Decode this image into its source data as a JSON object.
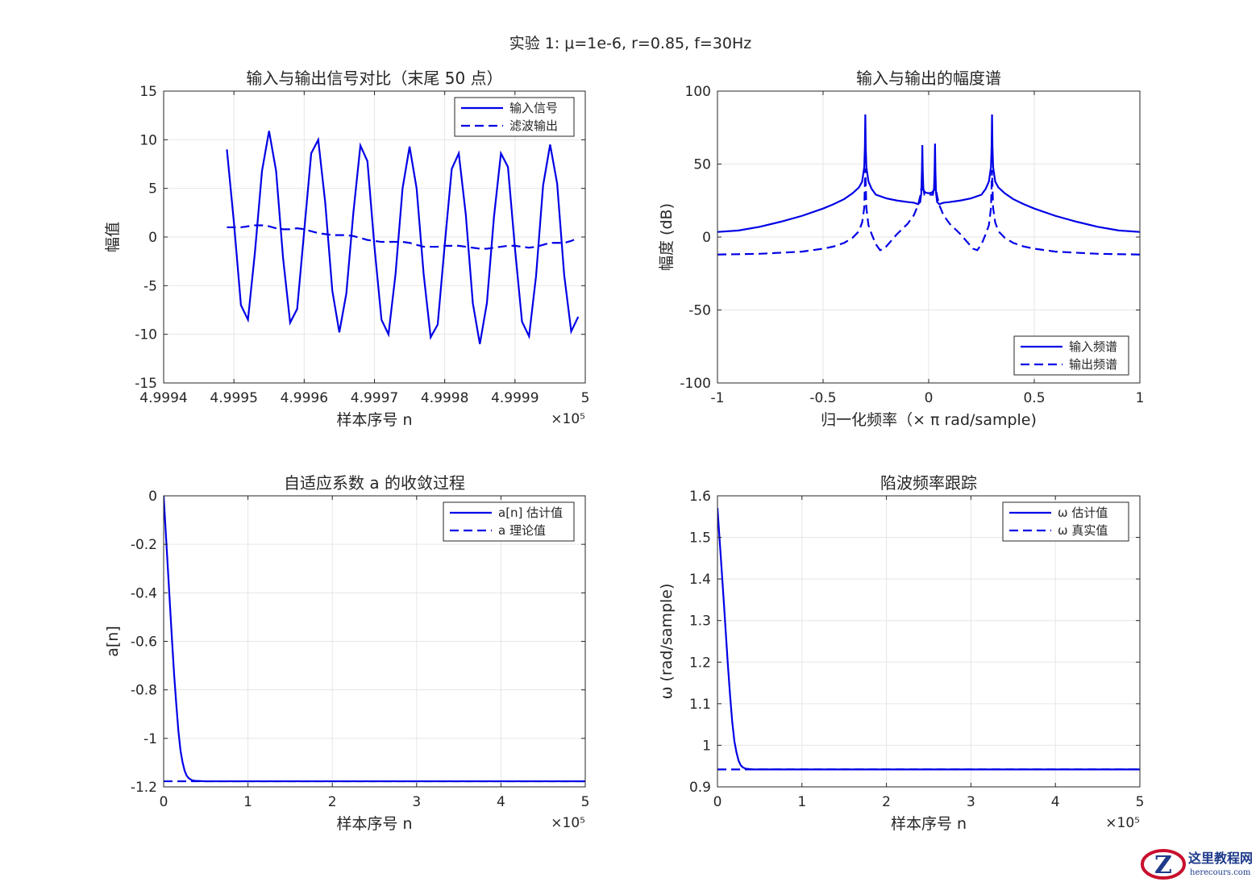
{
  "figure": {
    "title": "实验 1: μ=1e-6, r=0.85, f=30Hz"
  },
  "chart_data": [
    {
      "id": "p1",
      "type": "line",
      "title": "输入与输出信号对比（末尾 50 点）",
      "xlabel": "样本序号 n",
      "ylabel": "幅值",
      "xlim": [
        4.9994,
        5
      ],
      "ylim": [
        -15,
        15
      ],
      "xticks": [
        4.9994,
        4.9995,
        4.9996,
        4.9997,
        4.9998,
        4.9999,
        5
      ],
      "xtick_labels": [
        "4.9994",
        "4.9995",
        "4.9996",
        "4.9997",
        "4.9998",
        "4.9999",
        "5"
      ],
      "yticks": [
        -15,
        -10,
        -5,
        0,
        5,
        10,
        15
      ],
      "ytick_labels": [
        "-15",
        "-10",
        "-5",
        "0",
        "5",
        "10",
        "15"
      ],
      "x_exponent": "×10⁵",
      "grid": true,
      "legend": {
        "location": "top-right"
      },
      "series": [
        {
          "name": "输入信号",
          "style": "solid",
          "x": [
            4.99949,
            4.9995,
            4.99951,
            4.99952,
            4.99953,
            4.99954,
            4.99955,
            4.99956,
            4.99957,
            4.99958,
            4.99959,
            4.9996,
            4.99961,
            4.99962,
            4.99963,
            4.99964,
            4.99965,
            4.99966,
            4.99967,
            4.99968,
            4.99969,
            4.9997,
            4.99971,
            4.99972,
            4.99973,
            4.99974,
            4.99975,
            4.99976,
            4.99977,
            4.99978,
            4.99979,
            4.9998,
            4.99981,
            4.99982,
            4.99983,
            4.99984,
            4.99985,
            4.99986,
            4.99987,
            4.99988,
            4.99989,
            4.9999,
            4.99991,
            4.99992,
            4.99993,
            4.99994,
            4.99995,
            4.99996,
            4.99997,
            4.99998,
            4.99999
          ],
          "y": [
            9.0,
            1.5,
            -7.0,
            -8.5,
            -1.5,
            6.8,
            10.9,
            6.8,
            -2.2,
            -8.8,
            -7.4,
            0.6,
            8.6,
            10.0,
            3.5,
            -5.5,
            -9.8,
            -5.8,
            2.5,
            9.4,
            7.8,
            -1.0,
            -8.5,
            -10.0,
            -3.8,
            5.0,
            9.3,
            5.0,
            -3.8,
            -10.3,
            -9.0,
            -0.8,
            7.0,
            8.6,
            2.3,
            -6.8,
            -11.0,
            -6.8,
            2.0,
            8.6,
            7.2,
            -1.2,
            -8.7,
            -10.2,
            -4.0,
            5.3,
            9.5,
            5.5,
            -3.9,
            -9.7,
            -8.2
          ]
        },
        {
          "name": "滤波输出",
          "style": "dashed",
          "x": [
            4.99949,
            4.9995,
            4.99951,
            4.99952,
            4.99953,
            4.99954,
            4.99955,
            4.99956,
            4.99957,
            4.99958,
            4.99959,
            4.9996,
            4.99961,
            4.99962,
            4.99963,
            4.99964,
            4.99965,
            4.99966,
            4.99967,
            4.99968,
            4.99969,
            4.9997,
            4.99971,
            4.99972,
            4.99973,
            4.99974,
            4.99975,
            4.99976,
            4.99977,
            4.99978,
            4.99979,
            4.9998,
            4.99981,
            4.99982,
            4.99983,
            4.99984,
            4.99985,
            4.99986,
            4.99987,
            4.99988,
            4.99989,
            4.9999,
            4.99991,
            4.99992,
            4.99993,
            4.99994,
            4.99995,
            4.99996,
            4.99997,
            4.99998,
            4.99999
          ],
          "y": [
            1.0,
            1.0,
            1.0,
            1.1,
            1.2,
            1.2,
            1.1,
            0.9,
            0.8,
            0.8,
            0.9,
            0.8,
            0.6,
            0.4,
            0.3,
            0.2,
            0.2,
            0.2,
            0.1,
            -0.1,
            -0.3,
            -0.4,
            -0.5,
            -0.5,
            -0.5,
            -0.5,
            -0.6,
            -0.8,
            -1.0,
            -1.0,
            -1.0,
            -0.9,
            -0.9,
            -0.9,
            -1.0,
            -1.1,
            -1.2,
            -1.2,
            -1.1,
            -1.0,
            -0.9,
            -0.9,
            -1.0,
            -1.1,
            -1.0,
            -0.8,
            -0.6,
            -0.6,
            -0.6,
            -0.4,
            -0.1
          ]
        }
      ]
    },
    {
      "id": "p2",
      "type": "line",
      "title": "输入与输出的幅度谱",
      "xlabel": "归一化频率（× π rad/sample)",
      "ylabel": "幅度 (dB)",
      "xlim": [
        -1,
        1
      ],
      "ylim": [
        -100,
        100
      ],
      "xticks": [
        -1,
        -0.5,
        0,
        0.5,
        1
      ],
      "xtick_labels": [
        "-1",
        "-0.5",
        "0",
        "0.5",
        "1"
      ],
      "yticks": [
        -100,
        -50,
        0,
        50,
        100
      ],
      "ytick_labels": [
        "-100",
        "-50",
        "0",
        "50",
        "100"
      ],
      "grid": true,
      "legend": {
        "location": "bottom-right"
      },
      "series": [
        {
          "name": "输入频谱",
          "style": "solid",
          "x": [
            -1,
            -0.9,
            -0.8,
            -0.7,
            -0.6,
            -0.5,
            -0.45,
            -0.4,
            -0.36,
            -0.33,
            -0.315,
            -0.305,
            -0.302,
            -0.3,
            -0.298,
            -0.295,
            -0.285,
            -0.27,
            -0.25,
            -0.2,
            -0.15,
            -0.1,
            -0.07,
            -0.05,
            -0.04,
            -0.035,
            -0.032,
            -0.03,
            -0.028,
            -0.025,
            -0.015,
            0,
            0.015,
            0.025,
            0.028,
            0.03,
            0.032,
            0.035,
            0.04,
            0.05,
            0.07,
            0.1,
            0.15,
            0.2,
            0.25,
            0.27,
            0.285,
            0.295,
            0.298,
            0.3,
            0.302,
            0.305,
            0.315,
            0.33,
            0.36,
            0.4,
            0.45,
            0.5,
            0.6,
            0.7,
            0.8,
            0.9,
            1
          ],
          "y": [
            3.5,
            4.5,
            7,
            10.5,
            14.5,
            19.5,
            22.5,
            26,
            30,
            34,
            38,
            48,
            62,
            84,
            62,
            48,
            38,
            33,
            29,
            26.5,
            25,
            24,
            23.5,
            22.5,
            24,
            30,
            45,
            63,
            45,
            32,
            30.5,
            30,
            30.5,
            32,
            45,
            64,
            45,
            30,
            24,
            22.5,
            23.5,
            24,
            25,
            26.5,
            29,
            33,
            38,
            48,
            62,
            84,
            62,
            48,
            38,
            34,
            30,
            26,
            22.5,
            19.5,
            14.5,
            10.5,
            7,
            4.5,
            3.5
          ]
        },
        {
          "name": "输出频谱",
          "style": "dashed",
          "x": [
            -1,
            -0.8,
            -0.6,
            -0.5,
            -0.45,
            -0.4,
            -0.36,
            -0.33,
            -0.315,
            -0.305,
            -0.3,
            -0.295,
            -0.285,
            -0.27,
            -0.25,
            -0.23,
            -0.21,
            -0.18,
            -0.15,
            -0.1,
            -0.07,
            -0.05,
            -0.04,
            -0.033,
            -0.03,
            -0.027,
            -0.02,
            -0.01,
            0,
            0.01,
            0.02,
            0.027,
            0.03,
            0.033,
            0.04,
            0.05,
            0.07,
            0.1,
            0.15,
            0.18,
            0.21,
            0.23,
            0.25,
            0.27,
            0.285,
            0.295,
            0.3,
            0.305,
            0.315,
            0.33,
            0.36,
            0.4,
            0.45,
            0.5,
            0.6,
            0.8,
            1
          ],
          "y": [
            -12,
            -11.5,
            -10,
            -8,
            -6.5,
            -4,
            -0.5,
            4,
            10,
            20,
            47,
            20,
            8,
            2,
            -5,
            -9,
            -8,
            -3,
            2,
            9,
            15,
            22,
            28,
            35,
            32,
            35,
            29,
            29,
            29,
            29,
            29,
            35,
            32,
            35,
            28,
            22,
            15,
            9,
            2,
            -3,
            -8,
            -9,
            -5,
            2,
            8,
            20,
            46,
            20,
            10,
            4,
            -0.5,
            -4,
            -6.5,
            -8,
            -10,
            -11.5,
            -12
          ]
        }
      ]
    },
    {
      "id": "p3",
      "type": "line",
      "title": "自适应系数 a 的收敛过程",
      "xlabel": "样本序号 n",
      "ylabel": "a[n]",
      "xlim": [
        0,
        5
      ],
      "ylim": [
        -1.2,
        0
      ],
      "xticks": [
        0,
        1,
        2,
        3,
        4,
        5
      ],
      "xtick_labels": [
        "0",
        "1",
        "2",
        "3",
        "4",
        "5"
      ],
      "yticks": [
        -1.2,
        -1,
        -0.8,
        -0.6,
        -0.4,
        -0.2,
        0
      ],
      "ytick_labels": [
        "-1.2",
        "-1",
        "-0.8",
        "-0.6",
        "-0.4",
        "-0.2",
        "0"
      ],
      "x_exponent": "×10⁵",
      "grid": true,
      "legend": {
        "location": "top-right"
      },
      "series": [
        {
          "name": "a[n] 估计值",
          "style": "solid",
          "x": [
            0,
            0.025,
            0.05,
            0.075,
            0.1,
            0.125,
            0.15,
            0.175,
            0.2,
            0.225,
            0.25,
            0.275,
            0.3,
            0.33,
            0.37,
            0.42,
            0.5,
            0.7,
            1,
            2,
            3,
            4,
            5
          ],
          "y": [
            0,
            -0.15,
            -0.3,
            -0.45,
            -0.6,
            -0.74,
            -0.86,
            -0.97,
            -1.05,
            -1.1,
            -1.135,
            -1.155,
            -1.165,
            -1.172,
            -1.175,
            -1.176,
            -1.177,
            -1.177,
            -1.177,
            -1.177,
            -1.177,
            -1.177,
            -1.177
          ]
        },
        {
          "name": "a 理论值",
          "style": "dashed",
          "x": [
            0,
            5
          ],
          "y": [
            -1.177,
            -1.177
          ]
        }
      ]
    },
    {
      "id": "p4",
      "type": "line",
      "title": "陷波频率跟踪",
      "xlabel": "样本序号 n",
      "ylabel": "ω (rad/sample)",
      "xlim": [
        0,
        5
      ],
      "ylim": [
        0.9,
        1.6
      ],
      "xticks": [
        0,
        1,
        2,
        3,
        4,
        5
      ],
      "xtick_labels": [
        "0",
        "1",
        "2",
        "3",
        "4",
        "5"
      ],
      "yticks": [
        0.9,
        1,
        1.1,
        1.2,
        1.3,
        1.4,
        1.5,
        1.6
      ],
      "ytick_labels": [
        "0.9",
        "1",
        "1.1",
        "1.2",
        "1.3",
        "1.4",
        "1.5",
        "1.6"
      ],
      "x_exponent": "×10⁵",
      "grid": true,
      "legend": {
        "location": "top-right"
      },
      "series": [
        {
          "name": "ω 估计值",
          "style": "solid",
          "x": [
            0,
            0.025,
            0.05,
            0.075,
            0.1,
            0.125,
            0.15,
            0.175,
            0.2,
            0.225,
            0.25,
            0.275,
            0.3,
            0.33,
            0.37,
            0.42,
            0.5,
            0.7,
            1,
            2,
            3,
            4,
            5
          ],
          "y": [
            1.5708,
            1.496,
            1.421,
            1.345,
            1.266,
            1.188,
            1.118,
            1.056,
            1.01,
            0.983,
            0.963,
            0.952,
            0.947,
            0.944,
            0.943,
            0.942,
            0.942,
            0.942,
            0.942,
            0.942,
            0.942,
            0.942,
            0.942
          ]
        },
        {
          "name": "ω 真实值",
          "style": "dashed",
          "x": [
            0,
            5
          ],
          "y": [
            0.942,
            0.942
          ]
        }
      ]
    }
  ],
  "watermark": {
    "logo_letter": "Z",
    "cn_text": "这里教程网",
    "url_text": "herecours.com"
  }
}
